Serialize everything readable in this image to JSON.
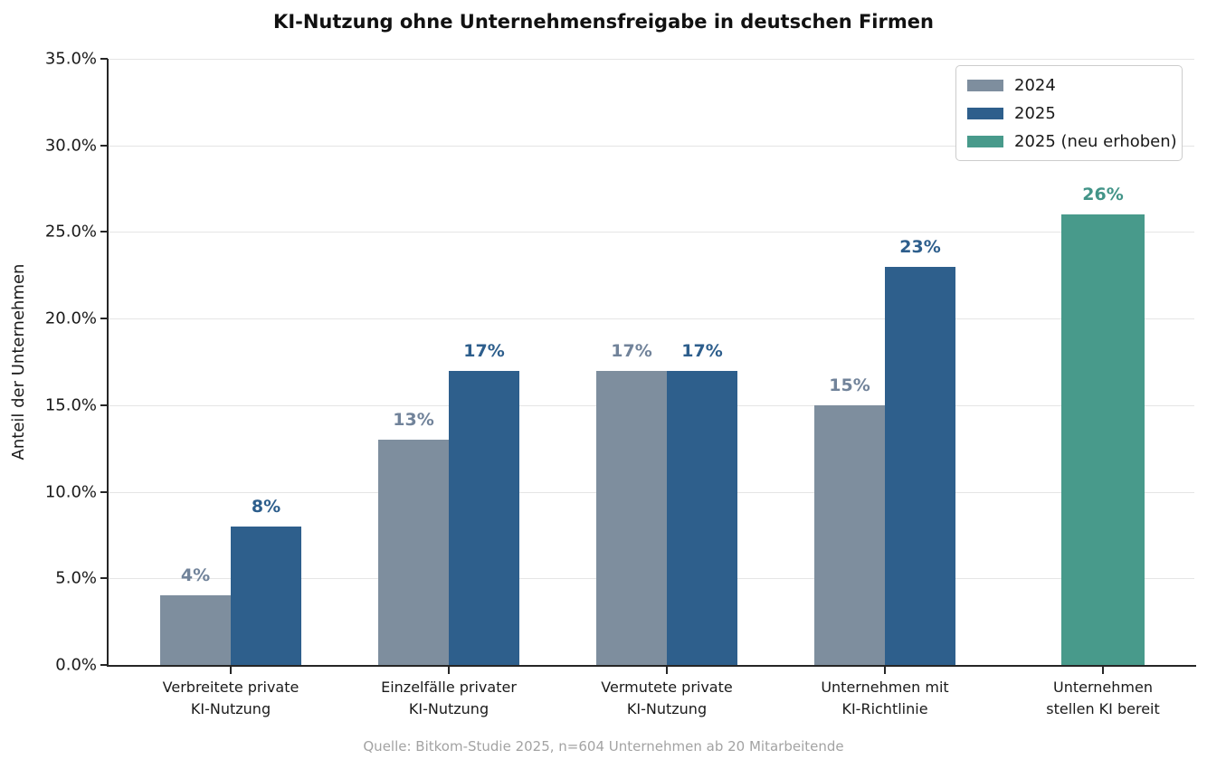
{
  "figure": {
    "title": "KI-Nutzung ohne Unternehmensfreigabe in deutschen Firmen",
    "source": "Quelle: Bitkom-Studie 2025, n=604 Unternehmen ab 20 Mitarbeitende"
  },
  "chart_data": {
    "type": "bar",
    "title": "KI-Nutzung ohne Unternehmensfreigabe in deutschen Firmen",
    "xlabel": "",
    "ylabel": "Anteil der Unternehmen",
    "ylim": [
      0,
      35
    ],
    "ytick_step": 5,
    "ytick_labels": [
      "0.0%",
      "5.0%",
      "10.0%",
      "15.0%",
      "20.0%",
      "25.0%",
      "30.0%",
      "35.0%"
    ],
    "grid": true,
    "legend_position": "upper right",
    "categories": [
      [
        "Verbreitete private",
        "KI-Nutzung"
      ],
      [
        "Einzelfälle privater",
        "KI-Nutzung"
      ],
      [
        "Vermutete private",
        "KI-Nutzung"
      ],
      [
        "Unternehmen mit",
        "KI-Richtlinie"
      ],
      [
        "Unternehmen",
        "stellen KI bereit"
      ]
    ],
    "series": [
      {
        "name": "2024",
        "color": "#7e8e9e",
        "label_color": "#71839a",
        "values": [
          4,
          13,
          17,
          15,
          null
        ]
      },
      {
        "name": "2025",
        "color": "#2e5f8c",
        "label_color": "#2d5e8c",
        "values": [
          8,
          17,
          17,
          23,
          null
        ]
      },
      {
        "name": "2025 (neu erhoben)",
        "color": "#489a8b",
        "label_color": "#429488",
        "values": [
          null,
          null,
          null,
          null,
          26
        ]
      }
    ],
    "value_labels": [
      [
        "4%",
        "13%",
        "17%",
        "15%",
        null
      ],
      [
        "8%",
        "17%",
        "17%",
        "23%",
        null
      ],
      [
        null,
        null,
        null,
        null,
        "26%"
      ]
    ],
    "source": "Quelle: Bitkom-Studie 2025, n=604 Unternehmen ab 20 Mitarbeitende"
  },
  "colors": {
    "background": "#ffffff",
    "grid": "#e5e5e5",
    "spine": "#262626",
    "text": "#1a1a1a",
    "source_text": "#a3a3a3",
    "legend_border": "#cccccc"
  }
}
